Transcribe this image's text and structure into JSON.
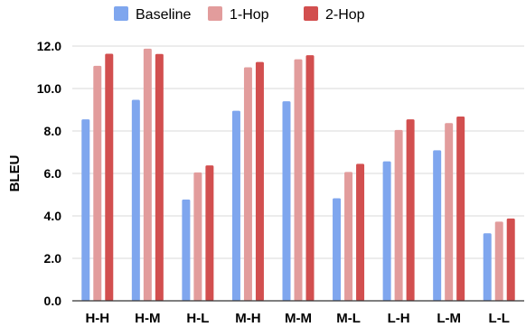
{
  "chart_data": {
    "type": "bar",
    "title": "",
    "xlabel": "",
    "ylabel": "BLEU",
    "ylim": [
      0,
      12
    ],
    "yticks": [
      "0.0",
      "2.0",
      "4.0",
      "6.0",
      "8.0",
      "10.0",
      "12.0"
    ],
    "grid": true,
    "legend_position": "top",
    "categories": [
      "H-H",
      "H-M",
      "H-L",
      "M-H",
      "M-M",
      "M-L",
      "L-H",
      "L-M",
      "L-L"
    ],
    "series": [
      {
        "name": "Baseline",
        "color": "#7fa6ee",
        "values": [
          8.55,
          9.47,
          4.77,
          8.95,
          9.4,
          4.83,
          6.57,
          7.09,
          3.18
        ]
      },
      {
        "name": "1-Hop",
        "color": "#e29c9c",
        "values": [
          11.07,
          11.88,
          6.05,
          11.0,
          11.38,
          6.07,
          8.05,
          8.37,
          3.73
        ]
      },
      {
        "name": "2-Hop",
        "color": "#d24f4f",
        "values": [
          11.64,
          11.63,
          6.38,
          11.25,
          11.57,
          6.45,
          8.55,
          8.68,
          3.88
        ]
      }
    ]
  }
}
